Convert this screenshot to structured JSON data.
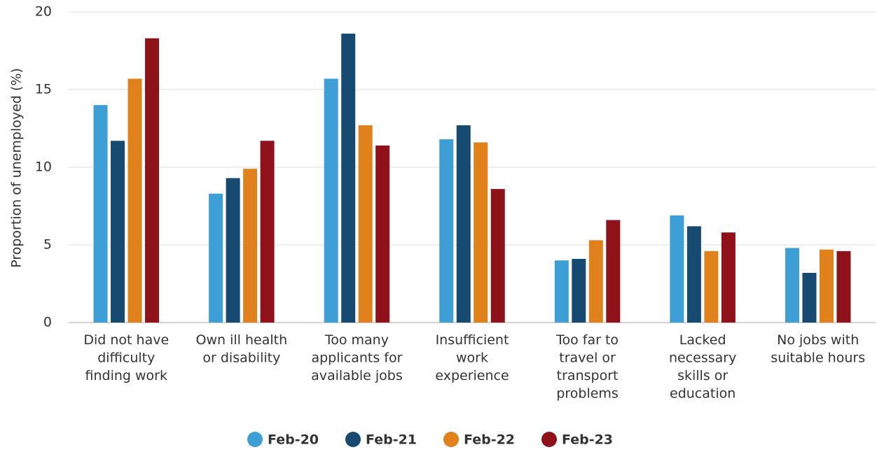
{
  "chart_data": {
    "type": "bar",
    "ylabel": "Proportion of unemployed (%)",
    "categories": [
      "Did not have\ndifficulty\nfinding work",
      "Own ill health\nor disability",
      "Too many\napplicants for\navailable jobs",
      "Insufficient\nwork\nexperience",
      "Too far to\ntravel or\ntransport\nproblems",
      "Lacked\nnecessary\nskills or\neducation",
      "No jobs with\nsuitable hours"
    ],
    "series": [
      {
        "name": "Feb-20",
        "color": "#3d9fd5",
        "values": [
          14.0,
          8.3,
          15.7,
          11.8,
          4.0,
          6.9,
          4.8
        ]
      },
      {
        "name": "Feb-21",
        "color": "#164a70",
        "values": [
          11.7,
          9.3,
          18.6,
          12.7,
          4.1,
          6.2,
          3.2
        ]
      },
      {
        "name": "Feb-22",
        "color": "#e0811c",
        "values": [
          15.7,
          9.9,
          12.7,
          11.6,
          5.3,
          4.6,
          4.7
        ]
      },
      {
        "name": "Feb-23",
        "color": "#8f121a",
        "values": [
          18.3,
          11.7,
          11.4,
          8.6,
          6.6,
          5.8,
          4.6
        ]
      }
    ],
    "ylim": [
      0,
      20
    ],
    "yticks": [
      0,
      5,
      10,
      15,
      20
    ],
    "grid": true,
    "legend": "bottom"
  }
}
